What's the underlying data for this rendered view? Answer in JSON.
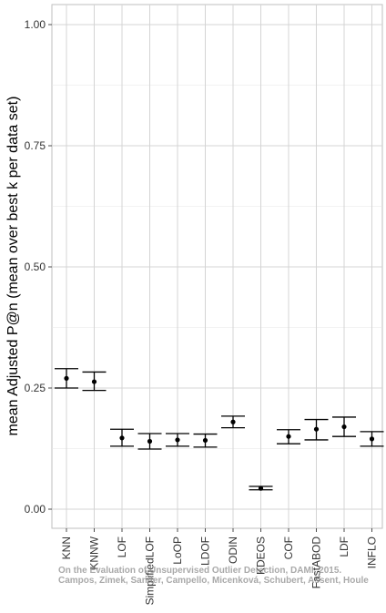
{
  "chart_data": {
    "type": "scatter",
    "error_bars": true,
    "grid": true,
    "ylabel": "mean Adjusted P@n (mean over best k per data set)",
    "ylim": [
      0,
      1
    ],
    "yticks": [
      "0.00",
      "0.25",
      "0.50",
      "0.75",
      "1.00"
    ],
    "categories": [
      "KNN",
      "KNNW",
      "LOF",
      "SimplifiedLOF",
      "LoOP",
      "LDOF",
      "ODIN",
      "KDEOS",
      "COF",
      "FastABOD",
      "LDF",
      "INFLO"
    ],
    "values": [
      0.27,
      0.263,
      0.147,
      0.14,
      0.143,
      0.142,
      0.18,
      0.043,
      0.15,
      0.165,
      0.17,
      0.145
    ],
    "lower": [
      0.25,
      0.245,
      0.13,
      0.124,
      0.13,
      0.128,
      0.168,
      0.04,
      0.135,
      0.143,
      0.15,
      0.13
    ],
    "upper": [
      0.29,
      0.283,
      0.165,
      0.156,
      0.156,
      0.155,
      0.192,
      0.047,
      0.164,
      0.185,
      0.19,
      0.16
    ]
  },
  "watermark": {
    "line1": "On the Evaluation of Unsupervised Outlier Detection, DAMI, 2015.",
    "line2": "Campos, Zimek, Sander, Campello, Micenková, Schubert, Assent, Houle"
  }
}
